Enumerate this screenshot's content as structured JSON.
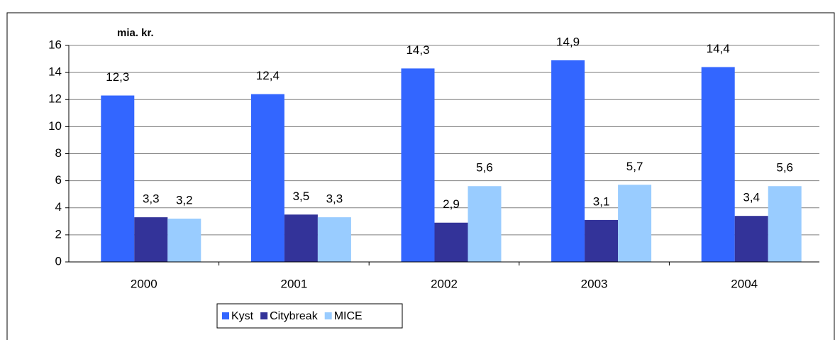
{
  "chart_data": {
    "type": "bar",
    "y_label": "mia. kr.",
    "categories": [
      "2000",
      "2001",
      "2002",
      "2003",
      "2004"
    ],
    "series": [
      {
        "name": "Kyst",
        "color": "#3366ff",
        "values": [
          12.3,
          12.4,
          14.3,
          14.9,
          14.4
        ],
        "value_labels": [
          "12,3",
          "12,4",
          "14,3",
          "14,9",
          "14,4"
        ]
      },
      {
        "name": "Citybreak",
        "color": "#333399",
        "values": [
          3.3,
          3.5,
          2.9,
          3.1,
          3.4
        ],
        "value_labels": [
          "3,3",
          "3,5",
          "2,9",
          "3,1",
          "3,4"
        ]
      },
      {
        "name": "MICE",
        "color": "#99ccff",
        "values": [
          3.2,
          3.3,
          5.6,
          5.7,
          5.6
        ],
        "value_labels": [
          "3,2",
          "3,3",
          "5,6",
          "5,7",
          "5,6"
        ]
      }
    ],
    "ylim": [
      0,
      16
    ],
    "yticks": [
      0,
      2,
      4,
      6,
      8,
      10,
      12,
      14,
      16
    ],
    "grid": true,
    "legend": "bottom"
  }
}
